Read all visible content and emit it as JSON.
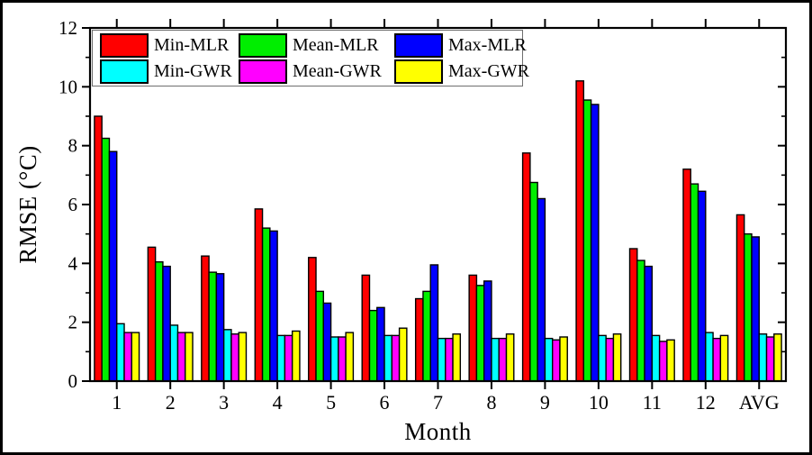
{
  "figure": {
    "background": "#ffffff",
    "border_color": "#000000",
    "axis_color": "#000000",
    "legend_border_color": "#6e6e6e"
  },
  "chart_data": {
    "type": "bar",
    "title": "",
    "xlabel": "Month",
    "ylabel": "RMSE (°C)",
    "ylim": [
      0,
      12
    ],
    "y_major_ticks": [
      0,
      2,
      4,
      6,
      8,
      10,
      12
    ],
    "y_minor_ticks": [
      1,
      3,
      5,
      7,
      9,
      11
    ],
    "grid": false,
    "legend_position": "top-left",
    "categories": [
      "1",
      "2",
      "3",
      "4",
      "5",
      "6",
      "7",
      "8",
      "9",
      "10",
      "11",
      "12",
      "AVG"
    ],
    "series": [
      {
        "name": "Min-MLR",
        "color": "#ff0000",
        "values": [
          9.0,
          4.55,
          4.25,
          5.85,
          4.2,
          3.6,
          2.8,
          3.6,
          7.75,
          10.2,
          4.5,
          7.2,
          5.65
        ]
      },
      {
        "name": "Mean-MLR",
        "color": "#00ee00",
        "values": [
          8.25,
          4.05,
          3.7,
          5.2,
          3.05,
          2.4,
          3.05,
          3.25,
          6.75,
          9.55,
          4.1,
          6.7,
          5.0
        ]
      },
      {
        "name": "Max-MLR",
        "color": "#0000ff",
        "values": [
          7.8,
          3.9,
          3.65,
          5.1,
          2.65,
          2.5,
          3.95,
          3.4,
          6.2,
          9.4,
          3.9,
          6.45,
          4.9
        ]
      },
      {
        "name": "Min-GWR",
        "color": "#00ffff",
        "values": [
          1.95,
          1.9,
          1.75,
          1.55,
          1.5,
          1.55,
          1.45,
          1.45,
          1.45,
          1.55,
          1.55,
          1.65,
          1.6
        ]
      },
      {
        "name": "Mean-GWR",
        "color": "#ff00ff",
        "values": [
          1.65,
          1.65,
          1.6,
          1.55,
          1.5,
          1.55,
          1.45,
          1.45,
          1.4,
          1.45,
          1.35,
          1.45,
          1.5
        ]
      },
      {
        "name": "Max-GWR",
        "color": "#ffff00",
        "values": [
          1.65,
          1.65,
          1.65,
          1.7,
          1.65,
          1.8,
          1.6,
          1.6,
          1.5,
          1.6,
          1.4,
          1.55,
          1.6
        ]
      }
    ]
  }
}
